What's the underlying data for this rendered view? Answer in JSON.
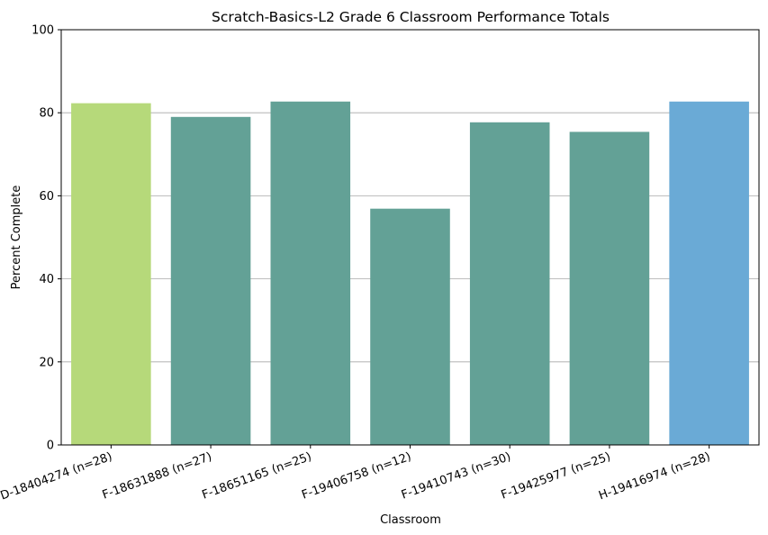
{
  "chart_data": {
    "type": "bar",
    "title": "Scratch-Basics-L2 Grade 6 Classroom Performance Totals",
    "xlabel": "Classroom",
    "ylabel": "Percent Complete",
    "ylim": [
      0,
      100
    ],
    "yticks": [
      0,
      20,
      40,
      60,
      80,
      100
    ],
    "grid": "horizontal at 20, 40, 60, 80",
    "categories": [
      "D-18404274 (n=28)",
      "F-18631888 (n=27)",
      "F-18651165 (n=25)",
      "F-19406758 (n=12)",
      "F-19410743 (n=30)",
      "F-19425977 (n=25)",
      "H-19416974 (n=28)"
    ],
    "values": [
      82.3,
      79.0,
      82.7,
      56.9,
      77.7,
      75.4,
      82.7
    ],
    "bar_colors": [
      "#b6d97a",
      "#63a196",
      "#63a196",
      "#63a196",
      "#63a196",
      "#63a196",
      "#6aaad6"
    ]
  }
}
